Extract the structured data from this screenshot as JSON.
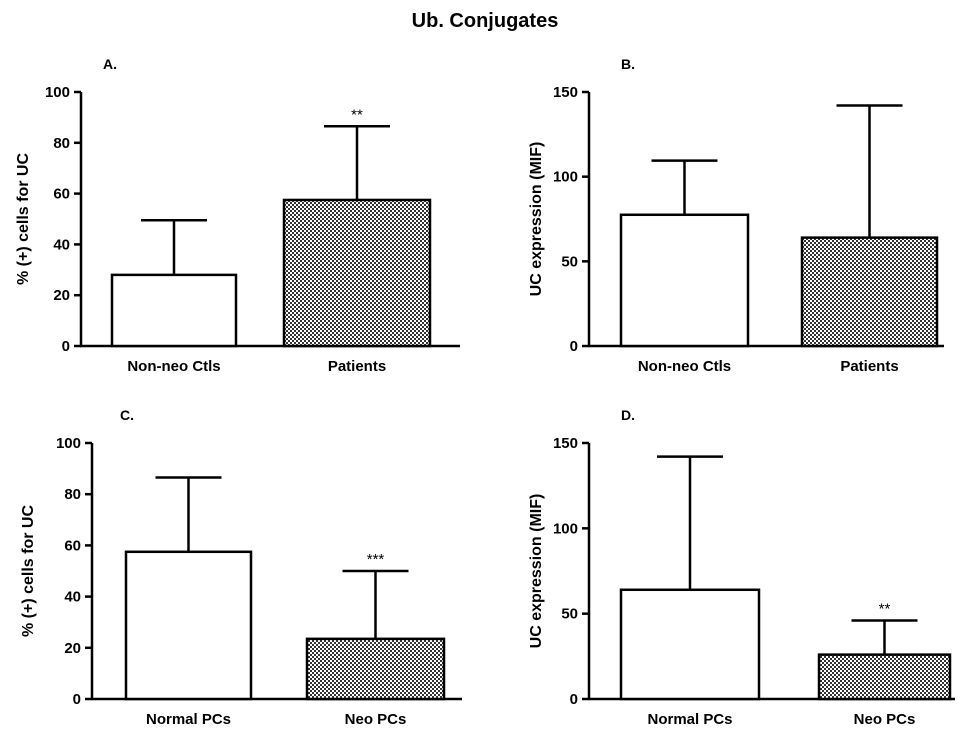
{
  "figure_title": "Ub. Conjugates",
  "colors": {
    "ink": "#000000",
    "open_fill": "#ffffff",
    "patterned_fill": "#c8c8c8"
  },
  "chart_data": [
    {
      "panel": "A.",
      "type": "bar",
      "categories": [
        "Non-neo Ctls",
        "Patients"
      ],
      "values": [
        28,
        57.5
      ],
      "error_upper": [
        49.5,
        86.5
      ],
      "fills": [
        "open",
        "patterned"
      ],
      "significance": [
        "",
        "**"
      ],
      "ylabel": "% (+) cells for UC",
      "xlabel": "",
      "ylim": [
        0,
        100
      ],
      "yticks": [
        0,
        20,
        40,
        60,
        80,
        100
      ]
    },
    {
      "panel": "B.",
      "type": "bar",
      "categories": [
        "Non-neo Ctls",
        "Patients"
      ],
      "values": [
        77.5,
        64
      ],
      "error_upper": [
        109.5,
        142
      ],
      "fills": [
        "open",
        "patterned"
      ],
      "significance": [
        "",
        ""
      ],
      "ylabel": "UC expression (MIF)",
      "xlabel": "",
      "ylim": [
        0,
        150
      ],
      "yticks": [
        0,
        50,
        100,
        150
      ]
    },
    {
      "panel": "C.",
      "type": "bar",
      "categories": [
        "Normal PCs",
        "Neo PCs"
      ],
      "values": [
        57.5,
        23.5
      ],
      "error_upper": [
        86.5,
        50
      ],
      "fills": [
        "open",
        "patterned"
      ],
      "significance": [
        "",
        "***"
      ],
      "ylabel": "% (+) cells for UC",
      "xlabel": "",
      "ylim": [
        0,
        100
      ],
      "yticks": [
        0,
        20,
        40,
        60,
        80,
        100
      ]
    },
    {
      "panel": "D.",
      "type": "bar",
      "categories": [
        "Normal PCs",
        "Neo PCs"
      ],
      "values": [
        64,
        26
      ],
      "error_upper": [
        142,
        46
      ],
      "fills": [
        "open",
        "patterned"
      ],
      "significance": [
        "",
        "**"
      ],
      "ylabel": "UC expression (MIF)",
      "xlabel": "",
      "ylim": [
        0,
        150
      ],
      "yticks": [
        0,
        50,
        100,
        150
      ]
    }
  ]
}
